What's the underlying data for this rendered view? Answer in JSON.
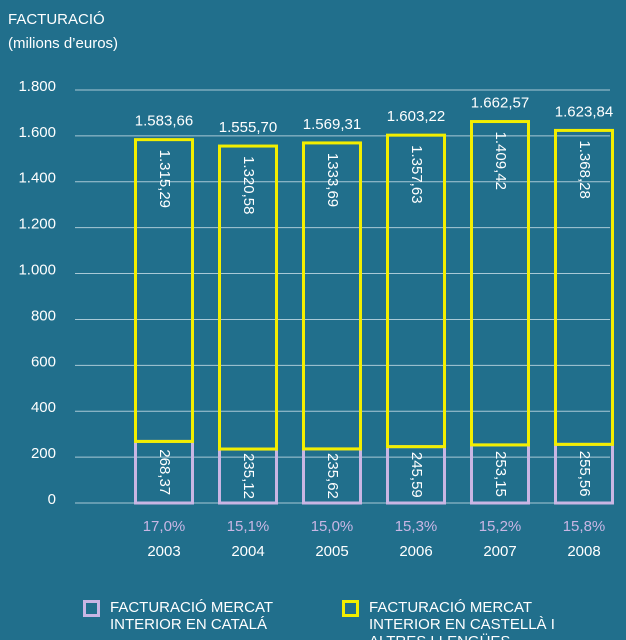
{
  "chart_data": {
    "type": "stacked_bar",
    "title": "FACTURACIÓ",
    "subtitle": "(milions d’euros)",
    "categories": [
      "2003",
      "2004",
      "2005",
      "2006",
      "2007",
      "2008"
    ],
    "series": [
      {
        "name": "FACTURACIÓ MERCAT INTERIOR EN CATALÁ",
        "color": "#c9b6e4",
        "values": [
          268.37,
          235.12,
          235.62,
          245.59,
          253.15,
          255.56
        ],
        "value_labels": [
          "268,37",
          "235,12",
          "235,62",
          "245,59",
          "253,15",
          "255,56"
        ]
      },
      {
        "name": "FACTURACIÓ MERCAT INTERIOR EN CASTELLÀ I ALTRES LLENGÜES",
        "color": "#f2ee00",
        "values": [
          1315.29,
          1320.58,
          1333.69,
          1357.63,
          1409.42,
          1368.28
        ],
        "value_labels": [
          "1.315,29",
          "1.320,58",
          "1333,69",
          "1.357,63",
          "1.409,42",
          "1.368,28"
        ]
      }
    ],
    "totals": [
      1583.66,
      1555.7,
      1569.31,
      1603.22,
      1662.57,
      1623.84
    ],
    "total_labels": [
      "1.583,66",
      "1.555,70",
      "1.569,31",
      "1.603,22",
      "1.662,57",
      "1.623,84"
    ],
    "shares": [
      17.0,
      15.1,
      15.0,
      15.3,
      15.2,
      15.8
    ],
    "share_labels": [
      "17,0%",
      "15,1%",
      "15,0%",
      "15,3%",
      "15,2%",
      "15,8%"
    ],
    "ylim": [
      0,
      1800
    ],
    "yticks": [
      0,
      200,
      400,
      600,
      800,
      {
        "value": 1000,
        "label": "1.000"
      },
      {
        "value": 1200,
        "label": "1.200"
      },
      {
        "value": 1400,
        "label": "1.400"
      },
      {
        "value": 1600,
        "label": "1.600"
      },
      {
        "value": 1800,
        "label": "1.800"
      }
    ],
    "grid": true
  }
}
